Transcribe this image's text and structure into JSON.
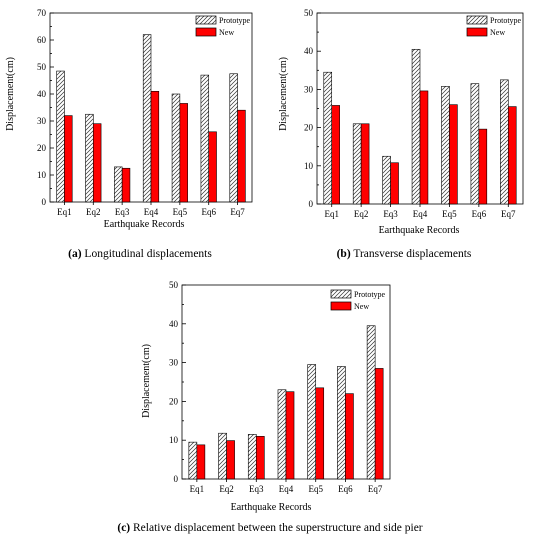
{
  "colors": {
    "prototype_fill": "#ffffff",
    "prototype_hatch": "#333333",
    "new_fill": "#ff0000",
    "axis": "#000000"
  },
  "chart_data": [
    {
      "type": "bar",
      "categories": [
        "Eq1",
        "Eq2",
        "Eq3",
        "Eq4",
        "Eq5",
        "Eq6",
        "Eq7"
      ],
      "series": [
        {
          "name": "Prototype",
          "pattern": "hatched",
          "values": [
            48.5,
            32.5,
            13,
            62,
            40,
            47,
            47.5
          ]
        },
        {
          "name": "New",
          "pattern": "solid-red",
          "values": [
            32,
            29,
            12.5,
            41,
            36.5,
            26,
            34
          ]
        }
      ],
      "xlabel": "Earthquake Records",
      "ylabel": "Displacement(cm)",
      "ylim": [
        0,
        70
      ],
      "yticks": [
        0,
        10,
        20,
        30,
        40,
        50,
        60,
        70
      ],
      "legend": "top-right",
      "grid": false,
      "caption_label": "(a)",
      "caption_text": " Longitudinal displacements"
    },
    {
      "type": "bar",
      "categories": [
        "Eq1",
        "Eq2",
        "Eq3",
        "Eq4",
        "Eq5",
        "Eq6",
        "Eq7"
      ],
      "series": [
        {
          "name": "Prototype",
          "pattern": "hatched",
          "values": [
            34.5,
            21,
            12.5,
            40.5,
            30.8,
            31.5,
            32.5
          ]
        },
        {
          "name": "New",
          "pattern": "solid-red",
          "values": [
            25.8,
            21,
            10.8,
            29.6,
            26,
            19.6,
            25.5
          ]
        }
      ],
      "xlabel": "Earthquake Records",
      "ylabel": "Displacement(cm)",
      "ylim": [
        0,
        50
      ],
      "yticks": [
        0,
        10,
        20,
        30,
        40,
        50
      ],
      "legend": "top-right",
      "grid": false,
      "caption_label": "(b)",
      "caption_text": " Transverse displacements"
    },
    {
      "type": "bar",
      "categories": [
        "Eq1",
        "Eq2",
        "Eq3",
        "Eq4",
        "Eq5",
        "Eq6",
        "Eq7"
      ],
      "series": [
        {
          "name": "Prototype",
          "pattern": "hatched",
          "values": [
            9.5,
            11.8,
            11.5,
            23,
            29.5,
            29,
            39.5
          ]
        },
        {
          "name": "New",
          "pattern": "solid-red",
          "values": [
            8.8,
            9.9,
            11,
            22.5,
            23.5,
            22,
            28.5
          ]
        }
      ],
      "xlabel": "Earthquake Records",
      "ylabel": "Displacement(cm)",
      "ylim": [
        0,
        50
      ],
      "yticks": [
        0,
        10,
        20,
        30,
        40,
        50
      ],
      "legend": "top-right",
      "grid": false,
      "caption_label": "(c)",
      "caption_text": " Relative displacement between the superstructure and side pier"
    }
  ]
}
